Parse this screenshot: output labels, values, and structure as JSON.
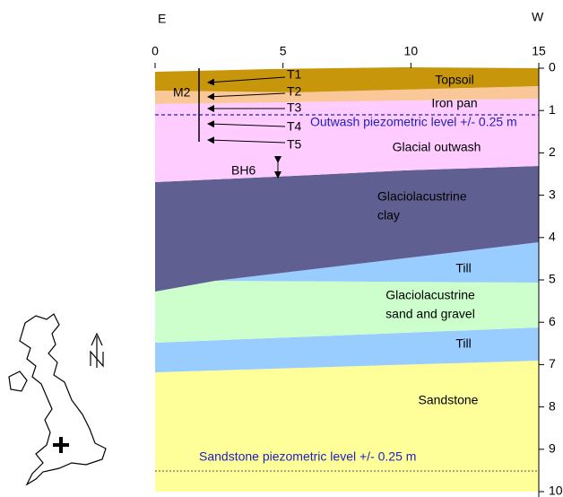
{
  "header": {
    "left": "E",
    "right": "W"
  },
  "x_axis": {
    "ticks": [
      0,
      5,
      10,
      15
    ]
  },
  "y_axis": {
    "ticks": [
      0,
      1,
      2,
      3,
      4,
      5,
      6,
      7,
      8,
      9,
      10
    ]
  },
  "layers": {
    "topsoil": "Topsoil",
    "iron_pan": "Iron pan",
    "glacial_outwash": "Glacial outwash",
    "clay": [
      "Glaciolacustrine",
      "clay"
    ],
    "till_upper": "Till",
    "sand": [
      "Glaciolacustrine",
      "sand and gravel"
    ],
    "till_lower": "Till",
    "sandstone": "Sandstone"
  },
  "levels": {
    "outwash": "Outwash piezometric level +/- 0.25 m",
    "sandstone": "Sandstone piezometric level +/- 0.25 m"
  },
  "borehole": "M2",
  "sensors": [
    "T1",
    "T2",
    "T3",
    "T4",
    "T5"
  ],
  "marker": "BH6"
}
